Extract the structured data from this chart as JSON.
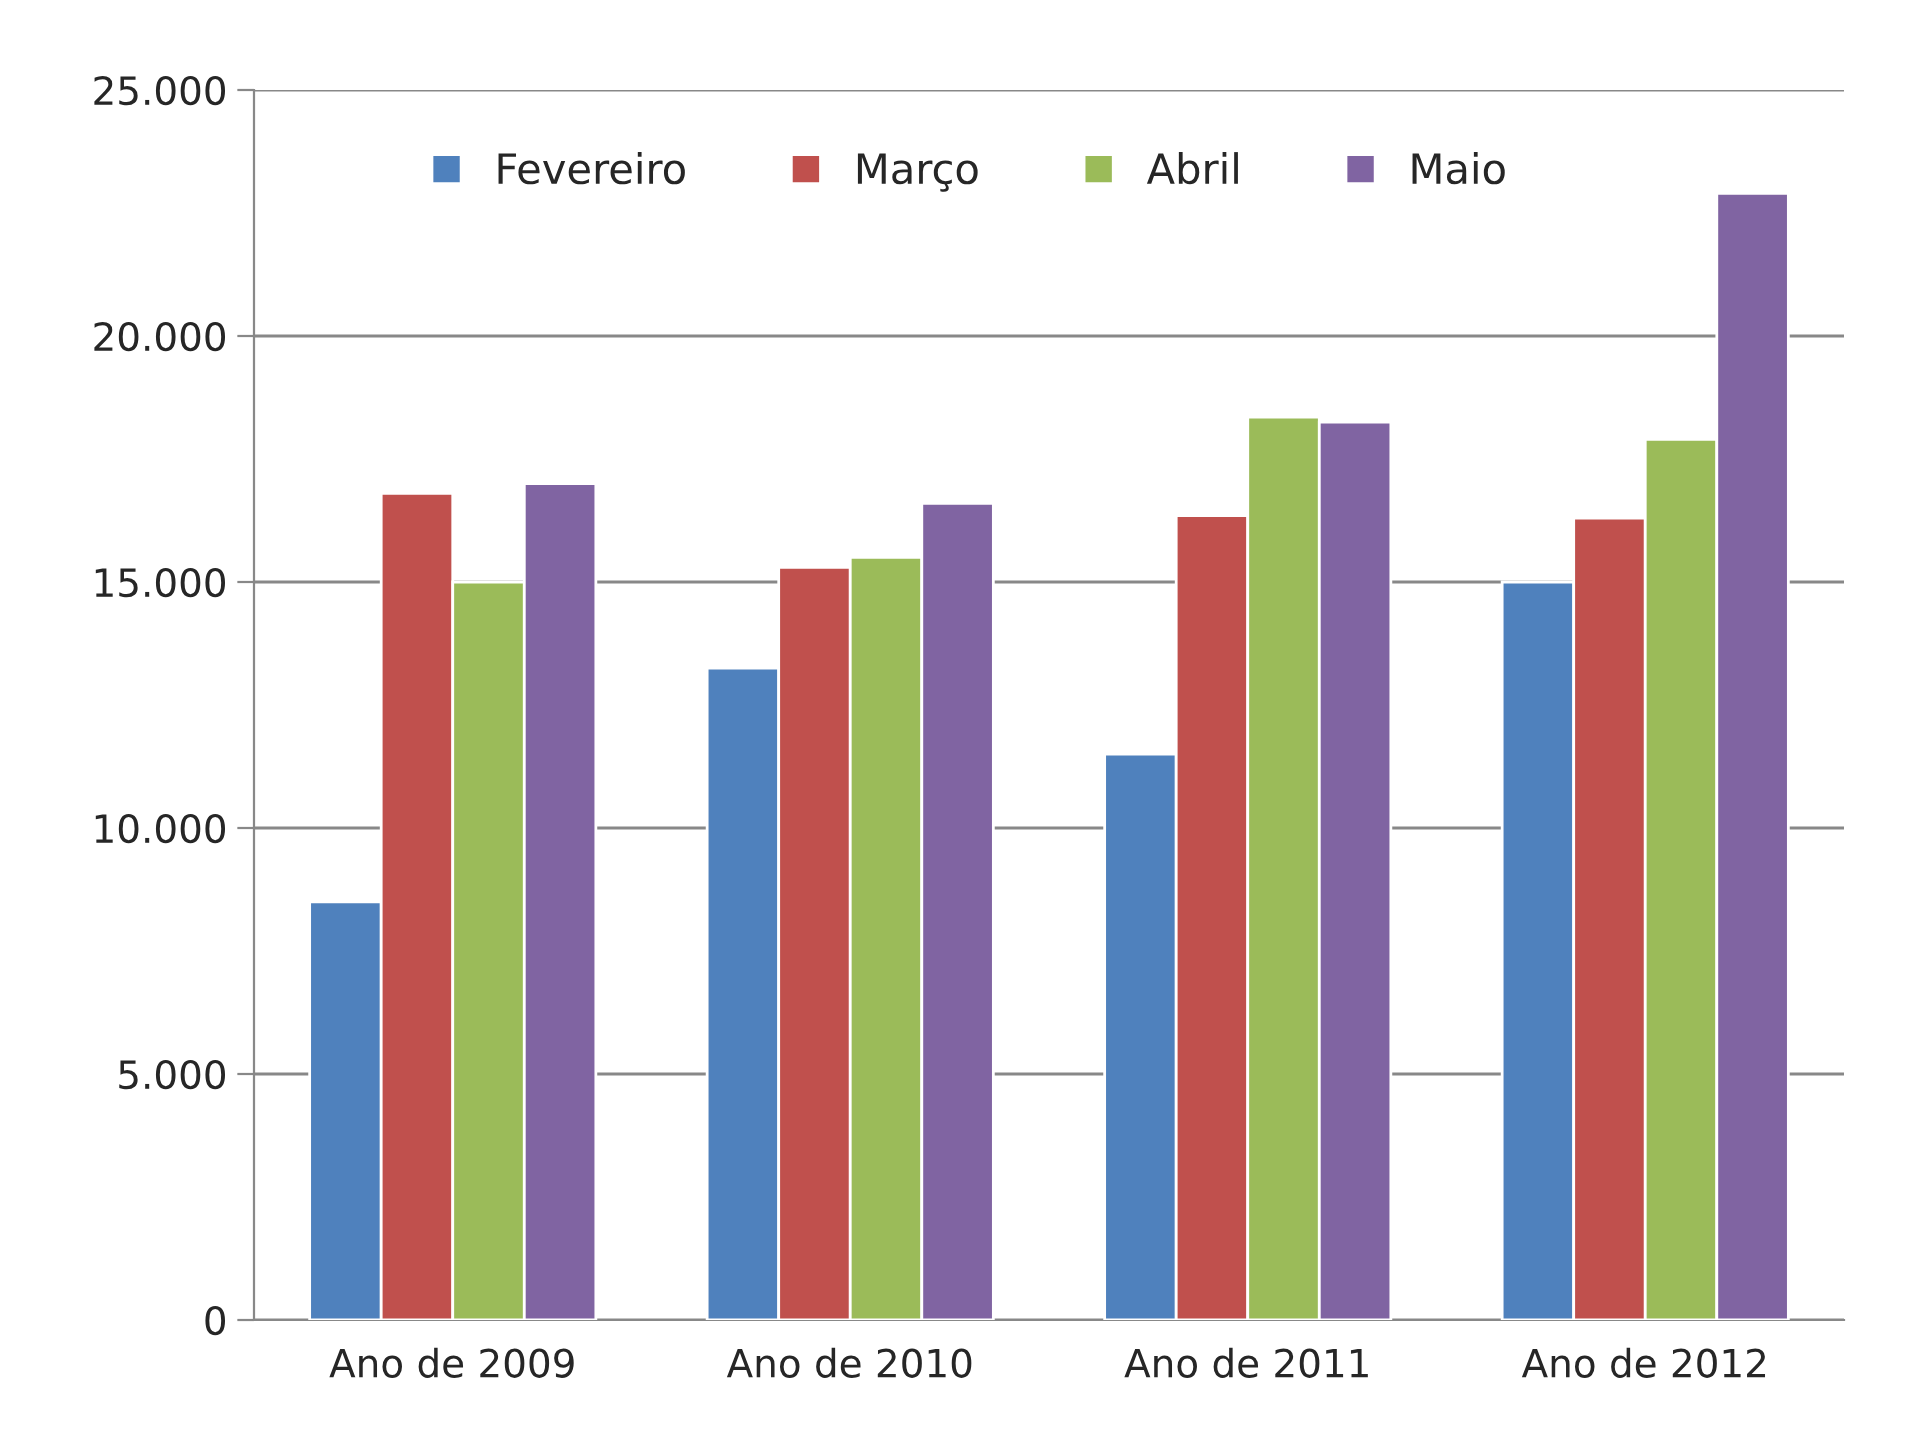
{
  "chart_data": {
    "type": "bar",
    "categories": [
      "Ano de 2009",
      "Ano de 2010",
      "Ano de 2011",
      "Ano de 2012"
    ],
    "series": [
      {
        "name": "Fevereiro",
        "color": "#4f81bd",
        "values": [
          8500,
          13250,
          11500,
          15000
        ]
      },
      {
        "name": "Março",
        "color": "#c0504d",
        "values": [
          16800,
          15300,
          16350,
          16300
        ]
      },
      {
        "name": "Abril",
        "color": "#9bbb59",
        "values": [
          15000,
          15500,
          18350,
          17900
        ]
      },
      {
        "name": "Maio",
        "color": "#8064a2",
        "values": [
          17000,
          16600,
          18250,
          22900
        ]
      }
    ],
    "ylim": [
      0,
      25000
    ],
    "yticks": [
      {
        "value": 0,
        "label": "0"
      },
      {
        "value": 5000,
        "label": "5.000"
      },
      {
        "value": 10000,
        "label": "10.000"
      },
      {
        "value": 15000,
        "label": "15.000"
      },
      {
        "value": 20000,
        "label": "20.000"
      },
      {
        "value": 25000,
        "label": "25.000"
      }
    ],
    "grid": "y",
    "legend": "top"
  }
}
